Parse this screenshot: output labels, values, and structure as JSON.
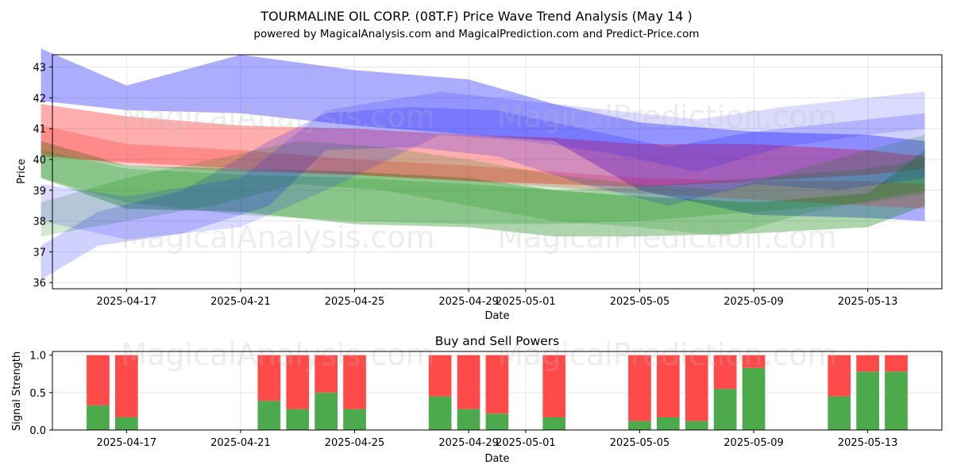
{
  "figure": {
    "title": "TOURMALINE OIL CORP. (08T.F) Price Wave Trend Analysis (May 14 )",
    "subtitle": "powered by MagicalAnalysis.com and MagicalPrediction.com and Predict-Price.com",
    "watermarks": [
      "MagicalAnalysis.com",
      "MagicalPrediction.com"
    ]
  },
  "chart_data": [
    {
      "type": "area",
      "title": "",
      "xlabel": "Date",
      "ylabel": "Price",
      "xlim": [
        "2025-04-14",
        "2025-05-16"
      ],
      "ylim": [
        35.8,
        43.4
      ],
      "grid": true,
      "x_ticks": [
        "2025-04-17",
        "2025-04-21",
        "2025-04-25",
        "2025-04-29",
        "2025-05-01",
        "2025-05-05",
        "2025-05-09",
        "2025-05-13"
      ],
      "y_ticks": [
        36,
        37,
        38,
        39,
        40,
        41,
        42,
        43
      ],
      "bands": [
        {
          "color": "#0000ff",
          "alpha": 0.32,
          "x": [
            "2025-04-14",
            "2025-04-17",
            "2025-04-21",
            "2025-04-25",
            "2025-04-29",
            "2025-05-02",
            "2025-05-05",
            "2025-05-09",
            "2025-05-13",
            "2025-05-15"
          ],
          "low": [
            41.9,
            41.6,
            41.5,
            41.1,
            40.8,
            40.6,
            39.0,
            38.2,
            38.1,
            38.0
          ],
          "high": [
            43.6,
            42.4,
            43.4,
            42.9,
            42.6,
            41.8,
            41.2,
            40.9,
            40.8,
            40.6
          ]
        },
        {
          "color": "#ff0000",
          "alpha": 0.32,
          "x": [
            "2025-04-14",
            "2025-04-17",
            "2025-04-21",
            "2025-04-25",
            "2025-04-29",
            "2025-05-02",
            "2025-05-05",
            "2025-05-09",
            "2025-05-13",
            "2025-05-15"
          ],
          "low": [
            40.1,
            39.9,
            39.7,
            39.5,
            39.3,
            39.2,
            39.1,
            39.3,
            39.5,
            39.7
          ],
          "high": [
            41.8,
            41.4,
            41.1,
            41.0,
            40.8,
            40.7,
            40.5,
            40.5,
            40.3,
            40.1
          ]
        },
        {
          "color": "#008000",
          "alpha": 0.32,
          "x": [
            "2025-04-14",
            "2025-04-17",
            "2025-04-21",
            "2025-04-25",
            "2025-04-29",
            "2025-05-02",
            "2025-05-05",
            "2025-05-09",
            "2025-05-13",
            "2025-05-15"
          ],
          "low": [
            39.4,
            38.4,
            38.3,
            37.9,
            37.8,
            37.5,
            37.5,
            37.6,
            37.8,
            38.5
          ],
          "high": [
            40.6,
            39.8,
            39.7,
            39.6,
            39.4,
            39.0,
            38.8,
            38.6,
            38.9,
            40.3
          ]
        },
        {
          "color": "#ff0000",
          "alpha": 0.2,
          "x": [
            "2025-04-14",
            "2025-04-17",
            "2025-04-21",
            "2025-04-25",
            "2025-04-29",
            "2025-05-02",
            "2025-05-05",
            "2025-05-09",
            "2025-05-13",
            "2025-05-15"
          ],
          "low": [
            40.2,
            39.8,
            39.6,
            39.5,
            39.3,
            39.1,
            38.9,
            38.7,
            38.5,
            38.4
          ],
          "high": [
            41.1,
            40.5,
            40.3,
            40.0,
            39.8,
            39.6,
            39.4,
            39.3,
            39.3,
            39.2
          ]
        },
        {
          "color": "#008000",
          "alpha": 0.2,
          "x": [
            "2025-04-14",
            "2025-04-17",
            "2025-04-21",
            "2025-04-25",
            "2025-04-29",
            "2025-05-02",
            "2025-05-05",
            "2025-05-09",
            "2025-05-13",
            "2025-05-15"
          ],
          "low": [
            39.4,
            38.6,
            38.2,
            38.0,
            37.9,
            37.9,
            38.0,
            38.3,
            38.6,
            38.9
          ],
          "high": [
            40.3,
            39.7,
            39.5,
            39.4,
            39.2,
            39.0,
            39.1,
            39.4,
            39.7,
            40.0
          ]
        },
        {
          "color": "#0000ff",
          "alpha": 0.18,
          "x": [
            "2025-04-14",
            "2025-04-16",
            "2025-04-19",
            "2025-04-22",
            "2025-04-24",
            "2025-04-27",
            "2025-04-30",
            "2025-05-03",
            "2025-05-06",
            "2025-05-09",
            "2025-05-12",
            "2025-05-15"
          ],
          "low": [
            36.1,
            37.2,
            37.6,
            38.5,
            40.3,
            40.4,
            40.1,
            39.2,
            38.5,
            39.2,
            39.0,
            39.4
          ],
          "high": [
            37.2,
            38.3,
            39.0,
            40.6,
            41.5,
            41.7,
            41.6,
            41.0,
            40.4,
            40.9,
            41.2,
            41.5
          ]
        },
        {
          "color": "#008000",
          "alpha": 0.18,
          "x": [
            "2025-04-14",
            "2025-04-17",
            "2025-04-20",
            "2025-04-23",
            "2025-04-26",
            "2025-04-29",
            "2025-05-02",
            "2025-05-05",
            "2025-05-08",
            "2025-05-11",
            "2025-05-15"
          ],
          "low": [
            37.5,
            38.0,
            38.5,
            39.2,
            39.0,
            38.5,
            38.0,
            37.8,
            37.5,
            38.3,
            39.0
          ],
          "high": [
            38.6,
            39.4,
            40.0,
            40.6,
            40.4,
            40.0,
            39.5,
            39.2,
            39.0,
            39.8,
            40.8
          ]
        },
        {
          "color": "#0000ff",
          "alpha": 0.14,
          "x": [
            "2025-04-14",
            "2025-04-17",
            "2025-04-21",
            "2025-04-24",
            "2025-04-28",
            "2025-05-01",
            "2025-05-04",
            "2025-05-07",
            "2025-05-10",
            "2025-05-13",
            "2025-05-15"
          ],
          "low": [
            38.0,
            37.4,
            37.8,
            39.0,
            40.8,
            40.6,
            40.2,
            39.6,
            40.4,
            40.8,
            41.0
          ],
          "high": [
            39.2,
            38.8,
            39.4,
            41.6,
            42.2,
            41.9,
            41.6,
            41.3,
            41.7,
            42.0,
            42.2
          ]
        }
      ]
    },
    {
      "type": "bar",
      "title": "Buy and Sell Powers",
      "xlabel": "Date",
      "ylabel": "Signal Strength",
      "ylim": [
        0,
        1.05
      ],
      "grid": true,
      "x_ticks": [
        "2025-04-17",
        "2025-04-21",
        "2025-04-25",
        "2025-04-29",
        "2025-05-01",
        "2025-05-05",
        "2025-05-09",
        "2025-05-13"
      ],
      "y_ticks": [
        "0.0",
        "0.5",
        "1.0"
      ],
      "buy_color": "#4caa4c",
      "sell_color": "#ff4a4a",
      "series": [
        {
          "name": "buy",
          "dates": [
            "2025-04-16",
            "2025-04-17",
            "2025-04-22",
            "2025-04-23",
            "2025-04-24",
            "2025-04-25",
            "2025-04-28",
            "2025-04-29",
            "2025-04-30",
            "2025-05-02",
            "2025-05-05",
            "2025-05-06",
            "2025-05-07",
            "2025-05-08",
            "2025-05-09",
            "2025-05-12",
            "2025-05-13",
            "2025-05-14"
          ],
          "values": [
            0.33,
            0.17,
            0.39,
            0.28,
            0.5,
            0.28,
            0.45,
            0.28,
            0.22,
            0.17,
            0.12,
            0.17,
            0.12,
            0.55,
            0.83,
            0.45,
            0.78,
            0.78
          ]
        },
        {
          "name": "sell",
          "dates": [
            "2025-04-16",
            "2025-04-17",
            "2025-04-22",
            "2025-04-23",
            "2025-04-24",
            "2025-04-25",
            "2025-04-28",
            "2025-04-29",
            "2025-04-30",
            "2025-05-02",
            "2025-05-05",
            "2025-05-06",
            "2025-05-07",
            "2025-05-08",
            "2025-05-09",
            "2025-05-12",
            "2025-05-13",
            "2025-05-14"
          ],
          "values": [
            0.67,
            0.83,
            0.61,
            0.72,
            0.5,
            0.72,
            0.55,
            0.72,
            0.78,
            0.83,
            0.88,
            0.83,
            0.88,
            0.45,
            0.17,
            0.55,
            0.22,
            0.22
          ]
        }
      ]
    }
  ]
}
